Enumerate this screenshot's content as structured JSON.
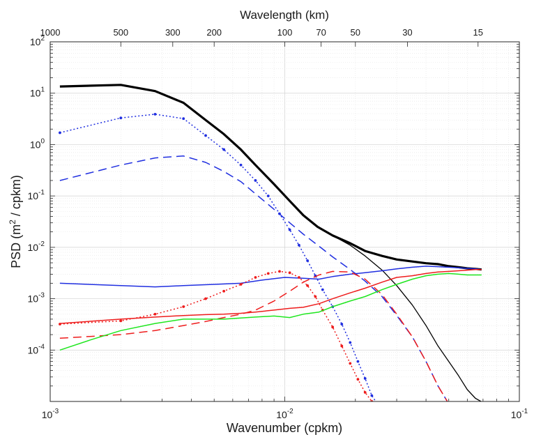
{
  "chart_data": {
    "type": "line",
    "xscale": "log",
    "yscale": "log",
    "xlabel": "Wavenumber (cpkm)",
    "ylabel_main": "PSD (m",
    "ylabel_sup": "2",
    "ylabel_tail": " / cpkm)",
    "top_axis_label": "Wavelength (km)",
    "xlim": [
      0.001,
      0.1
    ],
    "ylim": [
      1e-05,
      100
    ],
    "grid": true,
    "legend": "none",
    "x_ticks": [
      {
        "value": 0.001,
        "base": "10",
        "exp": "-3"
      },
      {
        "value": 0.01,
        "base": "10",
        "exp": "-2"
      },
      {
        "value": 0.1,
        "base": "10",
        "exp": "-1"
      }
    ],
    "y_ticks": [
      {
        "value": 0.0001,
        "base": "10",
        "exp": "-4"
      },
      {
        "value": 0.001,
        "base": "10",
        "exp": "-3"
      },
      {
        "value": 0.01,
        "base": "10",
        "exp": "-2"
      },
      {
        "value": 0.1,
        "base": "10",
        "exp": "-1"
      },
      {
        "value": 1,
        "base": "10",
        "exp": "0"
      },
      {
        "value": 10,
        "base": "10",
        "exp": "1"
      },
      {
        "value": 100,
        "base": "10",
        "exp": "2"
      }
    ],
    "top_ticks": [
      {
        "label": "1000",
        "x": 0.001
      },
      {
        "label": "500",
        "x": 0.002
      },
      {
        "label": "300",
        "x": 0.00333
      },
      {
        "label": "200",
        "x": 0.005
      },
      {
        "label": "100",
        "x": 0.01
      },
      {
        "label": "70",
        "x": 0.01429
      },
      {
        "label": "50",
        "x": 0.02
      },
      {
        "label": "30",
        "x": 0.03333
      },
      {
        "label": "15",
        "x": 0.06667
      }
    ],
    "series": [
      {
        "color": "#000000",
        "width": 3.2,
        "dash": "",
        "markers": false,
        "x": [
          0.0011,
          0.002,
          0.0028,
          0.0037,
          0.0046,
          0.0055,
          0.0065,
          0.0075,
          0.009,
          0.0105,
          0.012,
          0.0138,
          0.016,
          0.019,
          0.022,
          0.026,
          0.03,
          0.035,
          0.04,
          0.045,
          0.05,
          0.055,
          0.06,
          0.065,
          0.069
        ],
        "y": [
          13.5,
          14.5,
          11,
          6.5,
          3,
          1.6,
          0.8,
          0.4,
          0.17,
          0.08,
          0.042,
          0.025,
          0.017,
          0.012,
          0.0085,
          0.0068,
          0.0058,
          0.0053,
          0.0049,
          0.0047,
          0.0043,
          0.0041,
          0.0039,
          0.0038,
          0.0037
        ]
      },
      {
        "color": "#000000",
        "width": 1.3,
        "dash": "",
        "markers": false,
        "x": [
          0.0138,
          0.016,
          0.019,
          0.022,
          0.026,
          0.03,
          0.035,
          0.04,
          0.045,
          0.05,
          0.055,
          0.06,
          0.065,
          0.07
        ],
        "y": [
          0.025,
          0.017,
          0.011,
          0.0068,
          0.0036,
          0.0018,
          0.00075,
          0.0003,
          0.00012,
          6e-05,
          3.2e-05,
          1.7e-05,
          1.15e-05,
          9.5e-06
        ]
      },
      {
        "color": "#1f2ee0",
        "width": 1.5,
        "dash": "2 3",
        "markers": true,
        "x": [
          0.0011,
          0.002,
          0.0028,
          0.0037,
          0.0046,
          0.0055,
          0.0065,
          0.0075,
          0.0085,
          0.0095,
          0.0105,
          0.0115,
          0.0125,
          0.0135,
          0.0145,
          0.016,
          0.0175,
          0.019,
          0.0205,
          0.022,
          0.0235,
          0.025
        ],
        "y": [
          1.7,
          3.3,
          3.9,
          3.2,
          1.5,
          0.8,
          0.4,
          0.2,
          0.1,
          0.045,
          0.022,
          0.011,
          0.0055,
          0.0028,
          0.0015,
          0.0007,
          0.00032,
          0.00014,
          6e-05,
          2.8e-05,
          1.3e-05,
          8.5e-06
        ]
      },
      {
        "color": "#1f2ee0",
        "width": 1.5,
        "dash": "12 7",
        "markers": false,
        "x": [
          0.0011,
          0.002,
          0.0028,
          0.0037,
          0.0046,
          0.0055,
          0.0065,
          0.0075,
          0.009,
          0.0105,
          0.012,
          0.014,
          0.016,
          0.019,
          0.022,
          0.026,
          0.03,
          0.035,
          0.04,
          0.045,
          0.05,
          0.052
        ],
        "y": [
          0.2,
          0.4,
          0.55,
          0.6,
          0.45,
          0.3,
          0.19,
          0.11,
          0.055,
          0.03,
          0.018,
          0.0105,
          0.0065,
          0.0037,
          0.0022,
          0.0011,
          0.00047,
          0.00018,
          6e-05,
          2e-05,
          9e-06,
          7e-06
        ]
      },
      {
        "color": "#1f2ee0",
        "width": 1.5,
        "dash": "",
        "markers": false,
        "x": [
          0.0011,
          0.002,
          0.0028,
          0.0037,
          0.005,
          0.0065,
          0.008,
          0.01,
          0.012,
          0.014,
          0.016,
          0.019,
          0.022,
          0.026,
          0.03,
          0.035,
          0.04,
          0.045,
          0.05,
          0.055,
          0.06,
          0.065,
          0.069
        ],
        "y": [
          0.002,
          0.0018,
          0.0017,
          0.0018,
          0.0019,
          0.002,
          0.0023,
          0.0026,
          0.0025,
          0.0024,
          0.0027,
          0.003,
          0.0032,
          0.0035,
          0.0038,
          0.0041,
          0.0043,
          0.0042,
          0.0041,
          0.004,
          0.0039,
          0.0038,
          0.0037
        ]
      },
      {
        "color": "#ee1c1c",
        "width": 1.5,
        "dash": "2 3",
        "markers": true,
        "x": [
          0.0011,
          0.002,
          0.0028,
          0.0037,
          0.0046,
          0.0055,
          0.0065,
          0.0075,
          0.0085,
          0.0095,
          0.0105,
          0.0115,
          0.0125,
          0.0135,
          0.0145,
          0.016,
          0.0175,
          0.019,
          0.0205,
          0.022,
          0.0235,
          0.025
        ],
        "y": [
          0.00032,
          0.00037,
          0.0005,
          0.0007,
          0.001,
          0.0014,
          0.0019,
          0.0026,
          0.0031,
          0.0034,
          0.0032,
          0.0026,
          0.0018,
          0.0011,
          0.0006,
          0.00028,
          0.00012,
          5.5e-05,
          2.7e-05,
          1.5e-05,
          1e-05,
          8.5e-06
        ]
      },
      {
        "color": "#ee1c1c",
        "width": 1.5,
        "dash": "12 7",
        "markers": false,
        "x": [
          0.0011,
          0.002,
          0.0028,
          0.0037,
          0.0046,
          0.0055,
          0.0065,
          0.0075,
          0.009,
          0.0105,
          0.012,
          0.014,
          0.016,
          0.019,
          0.022,
          0.026,
          0.03,
          0.035,
          0.04,
          0.045,
          0.05,
          0.052
        ],
        "y": [
          0.00017,
          0.0002,
          0.00024,
          0.0003,
          0.00036,
          0.00043,
          0.0005,
          0.0006,
          0.0009,
          0.0014,
          0.0021,
          0.0029,
          0.0034,
          0.0033,
          0.0024,
          0.0012,
          0.0005,
          0.00018,
          6e-05,
          2e-05,
          9e-06,
          7e-06
        ]
      },
      {
        "color": "#ee1c1c",
        "width": 1.5,
        "dash": "",
        "markers": false,
        "x": [
          0.0011,
          0.002,
          0.0028,
          0.0037,
          0.0046,
          0.0055,
          0.0065,
          0.0075,
          0.009,
          0.0105,
          0.012,
          0.014,
          0.016,
          0.019,
          0.022,
          0.026,
          0.03,
          0.035,
          0.04,
          0.045,
          0.05,
          0.055,
          0.06,
          0.065,
          0.069
        ],
        "y": [
          0.00033,
          0.0004,
          0.00044,
          0.00047,
          0.00049,
          0.0005,
          0.00052,
          0.00055,
          0.0006,
          0.00065,
          0.00068,
          0.0008,
          0.001,
          0.0013,
          0.0016,
          0.0021,
          0.0026,
          0.0028,
          0.0031,
          0.0033,
          0.0034,
          0.0035,
          0.0036,
          0.0037,
          0.0037
        ]
      },
      {
        "color": "#1ee61e",
        "width": 1.5,
        "dash": "",
        "markers": false,
        "x": [
          0.0011,
          0.0015,
          0.002,
          0.0028,
          0.0037,
          0.0046,
          0.0055,
          0.0065,
          0.0075,
          0.009,
          0.0105,
          0.012,
          0.014,
          0.016,
          0.019,
          0.022,
          0.026,
          0.03,
          0.035,
          0.04,
          0.045,
          0.05,
          0.055,
          0.06,
          0.065,
          0.069
        ],
        "y": [
          0.0001,
          0.00016,
          0.00024,
          0.00033,
          0.0004,
          0.0004,
          0.0004,
          0.00042,
          0.00044,
          0.00046,
          0.00043,
          0.0005,
          0.00055,
          0.0007,
          0.0009,
          0.0011,
          0.0015,
          0.0019,
          0.0024,
          0.0028,
          0.003,
          0.0031,
          0.003,
          0.0029,
          0.0029,
          0.0029
        ]
      }
    ]
  }
}
